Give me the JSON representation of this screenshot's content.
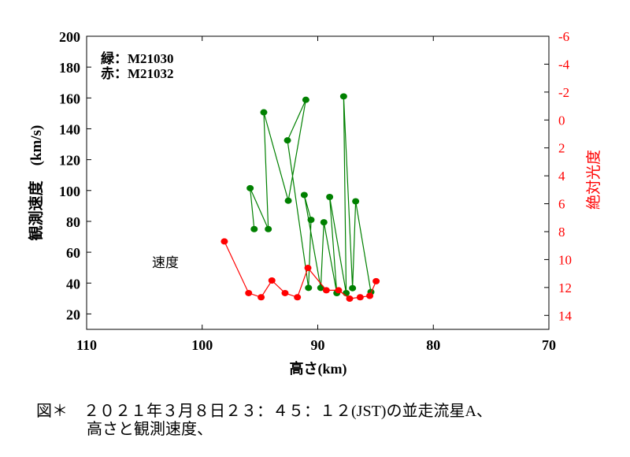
{
  "chart_data": {
    "type": "scatter",
    "xlabel": "高さ(km)",
    "ylabel": "観測速度　(km/s)",
    "y2label": "絶対光度",
    "xlim": [
      110,
      70
    ],
    "ylim": [
      10,
      200
    ],
    "y2lim": [
      15,
      -6
    ],
    "xticks": [
      "110",
      "100",
      "90",
      "80",
      "70"
    ],
    "yticks": [
      "20",
      "40",
      "60",
      "80",
      "100",
      "120",
      "140",
      "160",
      "180",
      "200"
    ],
    "y2ticks": [
      "-6",
      "-4",
      "-2",
      "0",
      "2",
      "4",
      "6",
      "8",
      "10",
      "12",
      "14"
    ],
    "legend": [
      "緑：M21030",
      "赤：M21032"
    ],
    "annotation": "速度",
    "series": [
      {
        "name": "M21030",
        "axis": "left",
        "color": "#008000",
        "points": [
          [
            95.5,
            75
          ],
          [
            95.85,
            101.5
          ],
          [
            94.28,
            75
          ],
          [
            94.67,
            150.7
          ],
          [
            92.55,
            93.4
          ],
          [
            91.03,
            158.8
          ],
          [
            92.62,
            132.5
          ],
          [
            90.8,
            36.9
          ],
          [
            90.58,
            81
          ],
          [
            91.17,
            97.1
          ],
          [
            89.74,
            36.9
          ],
          [
            89.47,
            79.4
          ],
          [
            88.35,
            33.5
          ],
          [
            88.97,
            95.8
          ],
          [
            87.54,
            33.5
          ],
          [
            87.76,
            161
          ],
          [
            86.99,
            36.7
          ],
          [
            86.72,
            93
          ],
          [
            85.4,
            34.2
          ]
        ]
      },
      {
        "name": "M21032",
        "axis": "right",
        "color": "#ff0000",
        "points": [
          [
            98.08,
            8.7
          ],
          [
            95.98,
            12.4
          ],
          [
            94.9,
            12.7
          ],
          [
            93.97,
            11.5
          ],
          [
            92.83,
            12.4
          ],
          [
            91.76,
            12.7
          ],
          [
            90.85,
            10.6
          ],
          [
            89.26,
            12.2
          ],
          [
            88.2,
            12.2
          ],
          [
            87.24,
            12.8
          ],
          [
            86.33,
            12.7
          ],
          [
            85.5,
            12.6
          ],
          [
            84.95,
            11.55
          ]
        ]
      }
    ]
  },
  "caption": {
    "line1": "図＊　２０２１年３月８日２３：４５：１２(JST)の並走流星A、",
    "line2": "高さと観測速度、"
  }
}
